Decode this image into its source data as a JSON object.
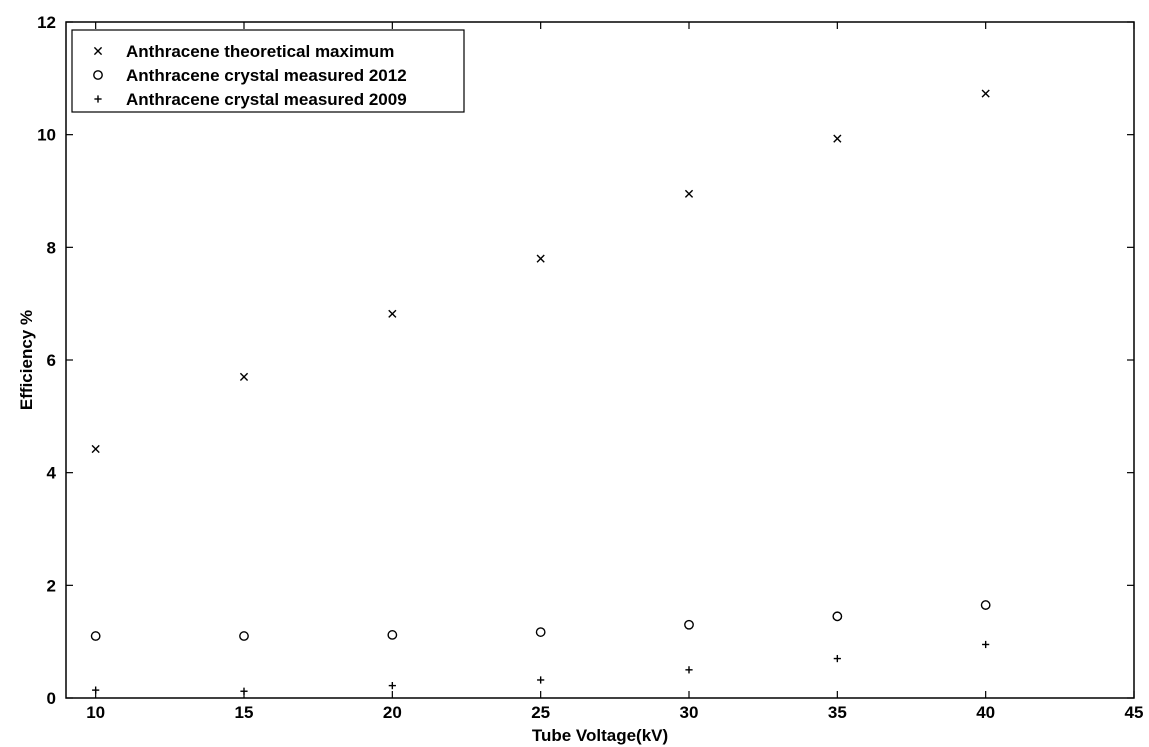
{
  "chart_data": {
    "type": "scatter",
    "title": "",
    "xlabel": "Tube Voltage(kV)",
    "ylabel": "Efficiency %",
    "xlim": [
      9,
      45
    ],
    "ylim": [
      0,
      12
    ],
    "xticks": [
      10,
      15,
      20,
      25,
      30,
      35,
      40,
      45
    ],
    "yticks": [
      0,
      2,
      4,
      6,
      8,
      10,
      12
    ],
    "grid": false,
    "legend_position": "top-left",
    "series": [
      {
        "name": "Anthracene theoretical maximum",
        "marker": "x",
        "color": "#000000",
        "x": [
          10,
          15,
          20,
          25,
          30,
          35,
          40
        ],
        "y": [
          4.42,
          5.7,
          6.82,
          7.8,
          8.95,
          9.93,
          10.73
        ]
      },
      {
        "name": "Anthracene crystal measured 2012",
        "marker": "o",
        "color": "#000000",
        "x": [
          10,
          15,
          20,
          25,
          30,
          35,
          40
        ],
        "y": [
          1.1,
          1.1,
          1.12,
          1.17,
          1.3,
          1.45,
          1.65
        ]
      },
      {
        "name": "Anthracene crystal measured 2009",
        "marker": "+",
        "color": "#000000",
        "x": [
          10,
          15,
          20,
          25,
          30,
          35,
          40
        ],
        "y": [
          0.14,
          0.12,
          0.22,
          0.32,
          0.5,
          0.7,
          0.95
        ]
      }
    ]
  }
}
